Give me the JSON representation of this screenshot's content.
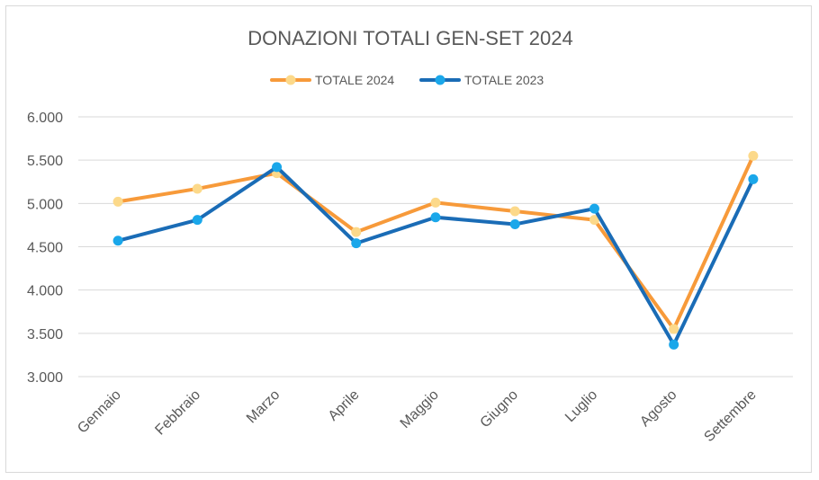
{
  "chart_data": {
    "type": "line",
    "title": "DONAZIONI TOTALI GEN-SET 2024",
    "xlabel": "",
    "ylabel": "",
    "categories": [
      "Gennaio",
      "Febbraio",
      "Marzo",
      "Aprile",
      "Maggio",
      "Giugno",
      "Luglio",
      "Agosto",
      "Settembre"
    ],
    "y_ticks": [
      "3.000",
      "3.500",
      "4.000",
      "4.500",
      "5.000",
      "5.500",
      "6.000"
    ],
    "ylim": [
      3000,
      6000
    ],
    "grid": true,
    "legend_position": "top",
    "series": [
      {
        "name": "TOTALE 2024",
        "line_color": "#f79a3a",
        "marker_color": "#fcd98a",
        "values": [
          5020,
          5170,
          5350,
          4670,
          5010,
          4910,
          4810,
          3550,
          5550
        ]
      },
      {
        "name": "TOTALE 2023",
        "line_color": "#1a6cb6",
        "marker_color": "#1aa7ea",
        "values": [
          4570,
          4810,
          5420,
          4540,
          4840,
          4760,
          4940,
          3370,
          5280
        ]
      }
    ]
  }
}
